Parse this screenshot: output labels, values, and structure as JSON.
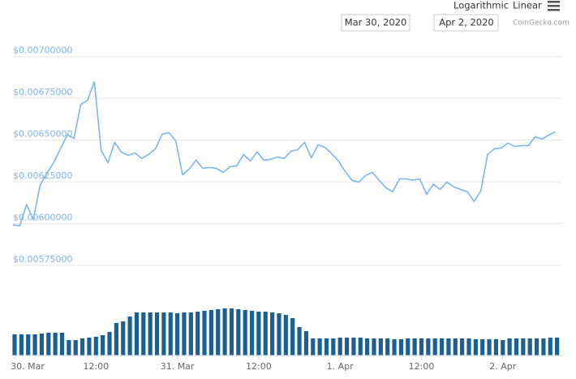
{
  "toolbar": {
    "scale_options": [
      "Logarithmic",
      "Linear"
    ],
    "date_from": "Mar 30, 2020",
    "date_to": "Apr 2, 2020"
  },
  "credit": "CoinGecko.com",
  "chart_data": [
    {
      "type": "line",
      "color": "#7cb5ec",
      "grid": true,
      "x": [
        0,
        1,
        2,
        3,
        4,
        5,
        6,
        7,
        8,
        9,
        10,
        11,
        12,
        13,
        14,
        15,
        16,
        17,
        18,
        19,
        20,
        21,
        22,
        23,
        24,
        25,
        26,
        27,
        28,
        29,
        30,
        31,
        32,
        33,
        34,
        35,
        36,
        37,
        38,
        39,
        40,
        41,
        42,
        43,
        44,
        45,
        46,
        47,
        48,
        49,
        50,
        51,
        52,
        53,
        54,
        55,
        56,
        57,
        58,
        59,
        60,
        61,
        62,
        63,
        64,
        65,
        66,
        67,
        68,
        69,
        70,
        71,
        72,
        73,
        74,
        75,
        76,
        77,
        78,
        79,
        80
      ],
      "values": [
        0.005992,
        0.005987,
        0.006113,
        0.006026,
        0.00623,
        0.006302,
        0.006365,
        0.006448,
        0.00653,
        0.006511,
        0.006714,
        0.006738,
        0.00685,
        0.006438,
        0.006365,
        0.006486,
        0.006428,
        0.006409,
        0.006423,
        0.00639,
        0.006414,
        0.006448,
        0.006535,
        0.006545,
        0.006496,
        0.006293,
        0.006327,
        0.00638,
        0.006331,
        0.006336,
        0.006331,
        0.006307,
        0.006341,
        0.006346,
        0.006414,
        0.006375,
        0.006428,
        0.00638,
        0.006385,
        0.006399,
        0.00639,
        0.006433,
        0.006443,
        0.006486,
        0.006394,
        0.006472,
        0.006457,
        0.006419,
        0.006375,
        0.006312,
        0.006259,
        0.006249,
        0.006288,
        0.006307,
        0.006259,
        0.006215,
        0.006191,
        0.006268,
        0.006268,
        0.006259,
        0.006268,
        0.006176,
        0.006235,
        0.006205,
        0.006249,
        0.00622,
        0.006205,
        0.006191,
        0.006133,
        0.006196,
        0.006414,
        0.006448,
        0.006453,
        0.006482,
        0.006462,
        0.006467,
        0.006467,
        0.00652,
        0.006506,
        0.00653,
        0.006549
      ],
      "xlim": [
        0,
        81
      ],
      "ylim": [
        0.00575,
        0.00712
      ],
      "yticks": [
        {
          "value": 0.00575,
          "label": "$0.00575000"
        },
        {
          "value": 0.006,
          "label": "$0.00600000"
        },
        {
          "value": 0.00625,
          "label": "$0.00625000"
        },
        {
          "value": 0.0065,
          "label": "$0.00650000"
        },
        {
          "value": 0.00675,
          "label": "$0.00675000"
        },
        {
          "value": 0.007,
          "label": "$0.00700000"
        }
      ]
    },
    {
      "type": "bar",
      "color": "#1c5f94",
      "x": [
        0,
        1,
        2,
        3,
        4,
        5,
        6,
        7,
        8,
        9,
        10,
        11,
        12,
        13,
        14,
        15,
        16,
        17,
        18,
        19,
        20,
        21,
        22,
        23,
        24,
        25,
        26,
        27,
        28,
        29,
        30,
        31,
        32,
        33,
        34,
        35,
        36,
        37,
        38,
        39,
        40,
        41,
        42,
        43,
        44,
        45,
        46,
        47,
        48,
        49,
        50,
        51,
        52,
        53,
        54,
        55,
        56,
        57,
        58,
        59,
        60,
        61,
        62,
        63,
        64,
        65,
        66,
        67,
        68,
        69,
        70,
        71,
        72,
        73,
        74,
        75,
        76,
        77,
        78,
        79,
        80
      ],
      "values": [
        26,
        26,
        26,
        26,
        27,
        28,
        28,
        28,
        19,
        19,
        21,
        22,
        23,
        25,
        29,
        40,
        42,
        48,
        53,
        53,
        53,
        53,
        53,
        53,
        52,
        53,
        53,
        54,
        55,
        56,
        57,
        58,
        58,
        57,
        56,
        55,
        54,
        54,
        53,
        52,
        50,
        46,
        35,
        30,
        21,
        21,
        21,
        21,
        22,
        22,
        22,
        22,
        21,
        21,
        21,
        21,
        20,
        20,
        21,
        21,
        21,
        21,
        21,
        21,
        21,
        21,
        21,
        21,
        20,
        20,
        20,
        20,
        19,
        21,
        21,
        21,
        21,
        21,
        21,
        22,
        22
      ],
      "xlim": [
        0,
        81
      ],
      "ylim": [
        0,
        100
      ],
      "xticks": [
        {
          "value": 0,
          "label": "30. Mar"
        },
        {
          "value": 12,
          "label": "12:00"
        },
        {
          "value": 24,
          "label": "31. Mar"
        },
        {
          "value": 36,
          "label": "12:00"
        },
        {
          "value": 48,
          "label": "1. Apr"
        },
        {
          "value": 60,
          "label": "12:00"
        },
        {
          "value": 72,
          "label": "2. Apr"
        }
      ]
    }
  ]
}
